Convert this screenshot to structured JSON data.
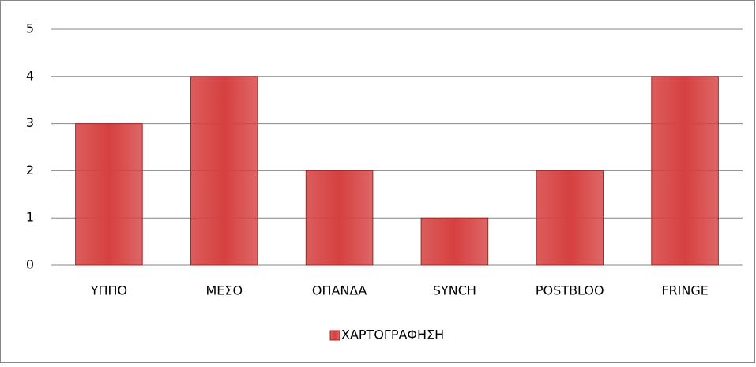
{
  "chart_data": {
    "type": "bar",
    "categories": [
      "ΥΠΠΟ",
      "ΜΕΣΟ",
      "ΟΠΑΝΔΑ",
      "SYNCH",
      "POSTBLOO",
      "FRINGE"
    ],
    "series": [
      {
        "name": "ΧΑΡΤΟΓΡΑΦΗΣΗ",
        "color": "#d64040",
        "values": [
          3,
          4,
          2,
          1,
          2,
          4
        ]
      }
    ],
    "ylim": [
      0,
      5
    ],
    "yticks": [
      0,
      1,
      2,
      3,
      4,
      5
    ],
    "grid": true,
    "legend": "bottom"
  }
}
